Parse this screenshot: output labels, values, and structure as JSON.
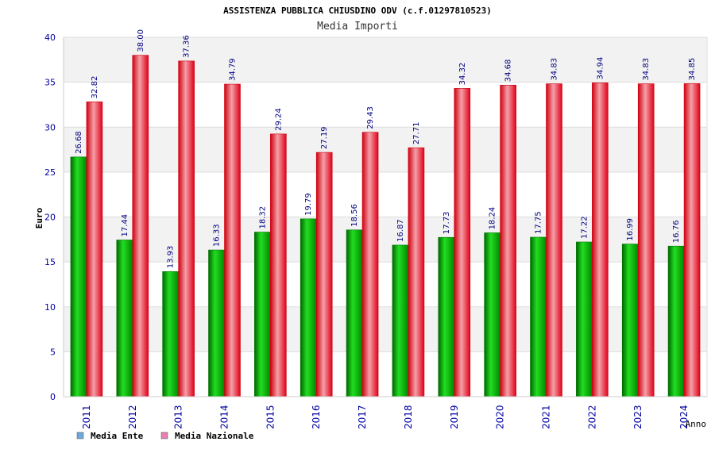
{
  "chart_data": {
    "type": "bar",
    "title": "ASSISTENZA PUBBLICA CHIUSDINO ODV (c.f.01297810523)",
    "subtitle": "Media Importi",
    "xlabel": "Anno",
    "ylabel": "Euro",
    "ylim": [
      0,
      40
    ],
    "yticks": [
      0,
      5,
      10,
      15,
      20,
      25,
      30,
      35,
      40
    ],
    "grid": true,
    "legend_position": "bottom-left",
    "categories": [
      "2011",
      "2012",
      "2013",
      "2014",
      "2015",
      "2016",
      "2017",
      "2018",
      "2019",
      "2020",
      "2021",
      "2022",
      "2023",
      "2024"
    ],
    "series": [
      {
        "name": "Media Ente",
        "color": "#00b000",
        "legend_color": "#6fa8dc",
        "values": [
          26.68,
          17.44,
          13.93,
          16.33,
          18.32,
          19.79,
          18.56,
          16.87,
          17.73,
          18.24,
          17.75,
          17.22,
          16.99,
          16.76
        ],
        "labels": [
          "26.68",
          "17.44",
          "13.93",
          "16.33",
          "18.32",
          "19.79",
          "18.56",
          "16.87",
          "17.73",
          "18.24",
          "17.75",
          "17.22",
          "16.99",
          "16.76"
        ]
      },
      {
        "name": "Media Nazionale",
        "color": "#e8303a",
        "legend_color": "#e77fb0",
        "values": [
          32.82,
          38.0,
          37.36,
          34.79,
          29.24,
          27.19,
          29.43,
          27.71,
          34.32,
          34.68,
          34.83,
          34.94,
          34.83,
          34.85
        ],
        "labels": [
          "32.82",
          "38.00",
          "37.36",
          "34.79",
          "29.24",
          "27.19",
          "29.43",
          "27.71",
          "34.32",
          "34.68",
          "34.83",
          "34.94",
          "34.83",
          "34.85"
        ]
      }
    ]
  }
}
